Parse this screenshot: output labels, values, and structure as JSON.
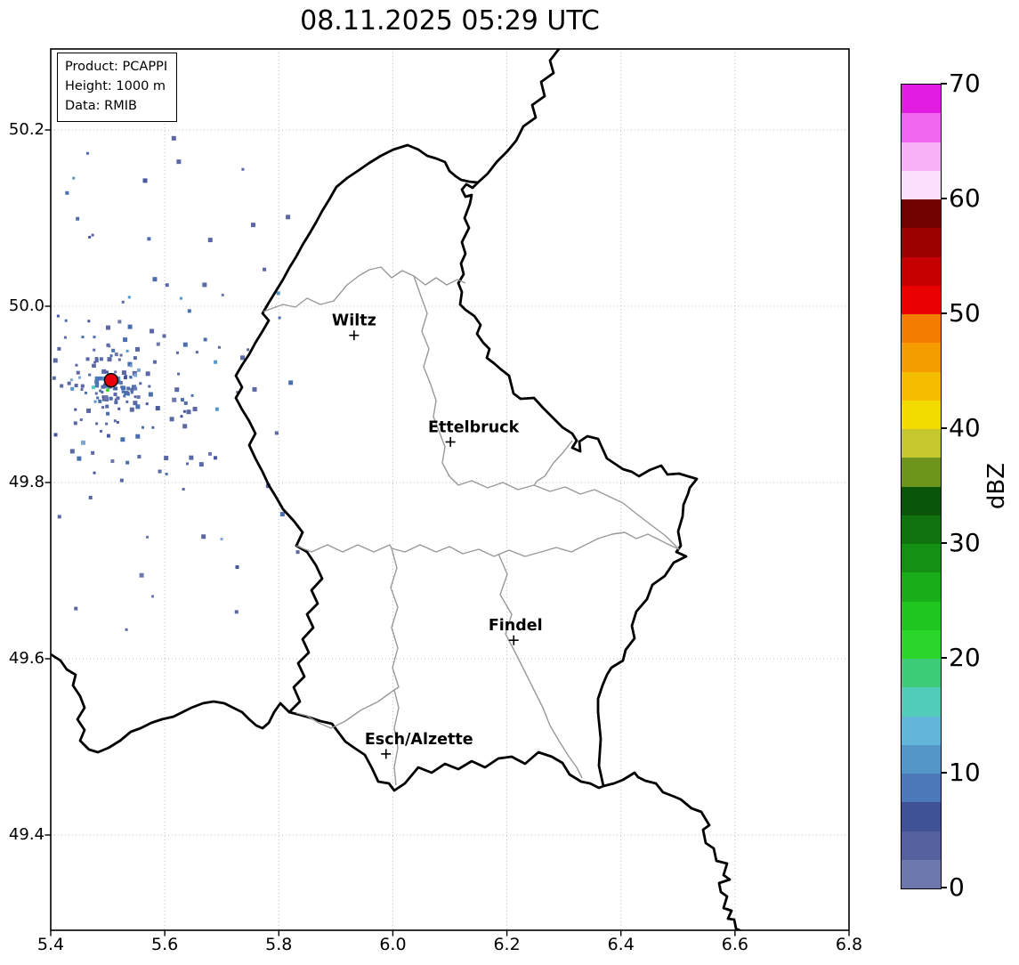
{
  "title": "08.11.2025 05:29 UTC",
  "info_box": {
    "lines": [
      "Product: PCAPPI",
      "Height: 1000 m",
      "Data: RMIB"
    ]
  },
  "axes": {
    "xlim": [
      5.4,
      6.8
    ],
    "ylim": [
      49.292,
      50.292
    ],
    "x_ticks": [
      {
        "label": "5.4",
        "value": 5.4
      },
      {
        "label": "5.6",
        "value": 5.6
      },
      {
        "label": "5.8",
        "value": 5.8
      },
      {
        "label": "6.0",
        "value": 6.0
      },
      {
        "label": "6.2",
        "value": 6.2
      },
      {
        "label": "6.4",
        "value": 6.4
      },
      {
        "label": "6.6",
        "value": 6.6
      },
      {
        "label": "6.8",
        "value": 6.8
      }
    ],
    "y_ticks": [
      {
        "label": "50.2",
        "value": 50.2
      },
      {
        "label": "50.0",
        "value": 50.0
      },
      {
        "label": "49.8",
        "value": 49.8
      },
      {
        "label": "49.6",
        "value": 49.6
      },
      {
        "label": "49.4",
        "value": 49.4
      }
    ]
  },
  "colorbar": {
    "label": "dBZ",
    "vmin": 0,
    "vmax": 70,
    "segment_step": 2.5,
    "ticks": [
      {
        "label": "0",
        "value": 0
      },
      {
        "label": "10",
        "value": 10
      },
      {
        "label": "20",
        "value": 20
      },
      {
        "label": "30",
        "value": 30
      },
      {
        "label": "40",
        "value": 40
      },
      {
        "label": "50",
        "value": 50
      },
      {
        "label": "60",
        "value": 60
      },
      {
        "label": "70",
        "value": 70
      }
    ],
    "colors_low_to_high": [
      "#6d78ae",
      "#55619f",
      "#3e5295",
      "#4a78b8",
      "#5496c8",
      "#63b6da",
      "#52ccba",
      "#3fcc78",
      "#29d629",
      "#20c620",
      "#1aad1a",
      "#149114",
      "#107310",
      "#0a550a",
      "#6f941c",
      "#c6c62e",
      "#f2dc00",
      "#f5bc00",
      "#f59c00",
      "#f47d00",
      "#ea0000",
      "#c60000",
      "#9e0000",
      "#730000",
      "#fcdffc",
      "#f9b2f9",
      "#f267f2",
      "#e21ce2"
    ]
  },
  "cities": [
    {
      "name": "Wiltz",
      "lon": 5.932,
      "lat": 49.967,
      "label_dx": 0
    },
    {
      "name": "Ettelbruck",
      "lon": 6.101,
      "lat": 49.846,
      "label_dx": 26
    },
    {
      "name": "Findel",
      "lon": 6.212,
      "lat": 49.621,
      "label_dx": 2
    },
    {
      "name": "Esch/Alzette",
      "lon": 5.988,
      "lat": 49.492,
      "label_dx": 37
    }
  ],
  "radar_site": {
    "lon": 5.506,
    "lat": 49.915,
    "marker_color": "#e8000b",
    "edge_color": "#111111"
  },
  "echoes": {
    "seed": 987653,
    "cluster": {
      "lon": 5.506,
      "lat": 49.915,
      "inner_count": 58,
      "outer_count": 86,
      "ring_count": 15
    },
    "sparse_count": 72,
    "pixel_colors": [
      "#5a68a5",
      "#4a6fae",
      "#47589c",
      "#6d78ae",
      "#5496c8",
      "#7ea6cf"
    ],
    "accent_pixels": {
      "teal": "#52ccba",
      "green": "#29d629",
      "navy": "#3e5295"
    }
  },
  "chart_data": {
    "type": "map",
    "title": "08.11.2025 05:29 UTC",
    "product": "PCAPPI",
    "height_m": "1000 m",
    "data_source": "RMIB",
    "x_axis": {
      "range": [
        5.4,
        6.8
      ],
      "ticks": [
        5.4,
        5.6,
        5.8,
        6.0,
        6.2,
        6.4,
        6.6,
        6.8
      ]
    },
    "y_axis": {
      "range": [
        49.292,
        50.292
      ],
      "ticks": [
        50.2,
        50.0,
        49.8,
        49.6,
        49.4
      ]
    },
    "colorbar": {
      "label": "dBZ",
      "range": [
        0,
        70
      ],
      "ticks": [
        0,
        10,
        20,
        30,
        40,
        50,
        60,
        70
      ]
    },
    "cities": [
      {
        "name": "Wiltz",
        "lon": 5.932,
        "lat": 49.967
      },
      {
        "name": "Ettelbruck",
        "lon": 6.101,
        "lat": 49.846
      },
      {
        "name": "Findel",
        "lon": 6.212,
        "lat": 49.621
      },
      {
        "name": "Esch/Alzette",
        "lon": 5.988,
        "lat": 49.492
      }
    ],
    "radar_site": {
      "lon": 5.506,
      "lat": 49.915
    },
    "notes": "Low-reflectivity ground clutter (0-15 dBZ) scattered around radar site; country border of Luxembourg in black, district borders in gray"
  }
}
